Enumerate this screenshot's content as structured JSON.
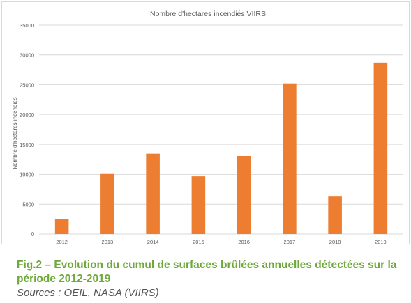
{
  "caption": {
    "line1": "Fig.2 – Evolution du cumul de surfaces brûlées annuelles détectées sur la",
    "line2": "période 2012-2019",
    "source": "Sources : OEIL, NASA (VIIRS)"
  },
  "colors": {
    "bar": "#ed7d31",
    "grid": "#d9d9d9",
    "text": "#595959",
    "caption": "#6ea83a"
  },
  "chart_data": {
    "type": "bar",
    "title": "Nombre d'hectares incendiés VIIRS",
    "xlabel": "",
    "ylabel": "Nombre d'hectares incendiés",
    "categories": [
      "2012",
      "2013",
      "2014",
      "2015",
      "2016",
      "2017",
      "2018",
      "2019"
    ],
    "values": [
      2500,
      10100,
      13500,
      9700,
      13000,
      25200,
      6300,
      28700
    ],
    "ylim": [
      0,
      35000
    ],
    "yticks": [
      0,
      5000,
      10000,
      15000,
      20000,
      25000,
      30000,
      35000
    ],
    "grid": true,
    "legend": "none"
  }
}
